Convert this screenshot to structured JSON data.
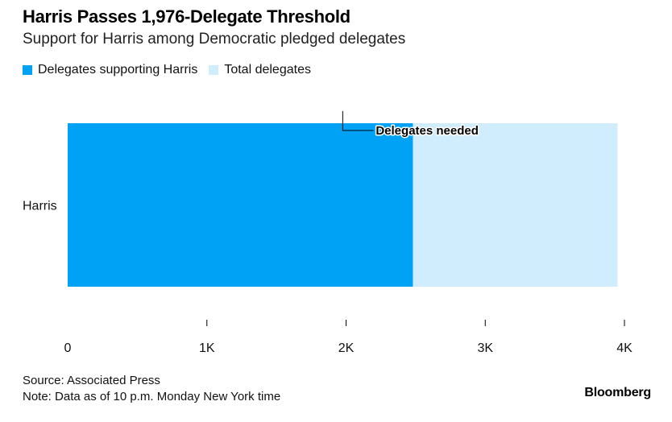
{
  "chart_data": {
    "type": "bar",
    "orientation": "horizontal",
    "title": "Harris Passes 1,976-Delegate Threshold",
    "subtitle": "Support for Harris among Democratic pledged delegates",
    "categories": [
      "Harris"
    ],
    "series": [
      {
        "name": "Delegates supporting Harris",
        "values": [
          2480
        ],
        "color": "#00a2f6"
      },
      {
        "name": "Total delegates",
        "values": [
          3950
        ],
        "color": "#cfedfc"
      }
    ],
    "annotation": {
      "label": "Delegates needed",
      "value": 1976
    },
    "xlim": [
      0,
      4000
    ],
    "xticks": [
      0,
      1000,
      2000,
      3000,
      4000
    ],
    "xtick_labels": [
      "0",
      "1K",
      "2K",
      "3K",
      "4K"
    ],
    "legend_position": "top-left",
    "grid": false
  },
  "footer": {
    "source": "Source: Associated Press",
    "note": "Note: Data as of 10 p.m. Monday New York time",
    "brand": "Bloomberg"
  }
}
